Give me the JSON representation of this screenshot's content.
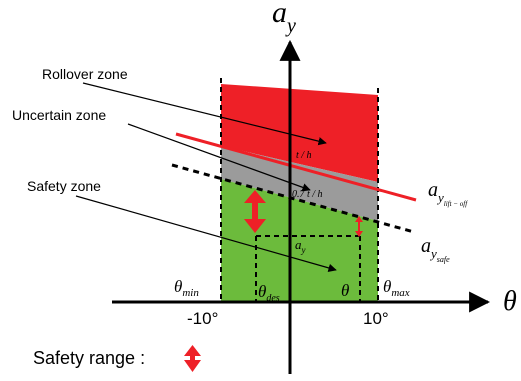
{
  "axes": {
    "y_label_main": "a",
    "y_label_sub": "y",
    "x_label": "θ"
  },
  "zones": {
    "rollover": "Rollover zone",
    "uncertain": "Uncertain zone",
    "safety": "Safety zone"
  },
  "line_labels": {
    "t_over_h": "t / h",
    "t_over_h_scaled": "0.7 t / h",
    "a_y": "a",
    "a_y_sub": "y"
  },
  "thresholds": {
    "lift_off_main": "a",
    "lift_off_sub": "y",
    "lift_off_subsub": "lift − off",
    "safe_main": "a",
    "safe_sub": "y",
    "safe_subsub": "safe"
  },
  "angles": {
    "theta_min_main": "θ",
    "theta_min_sub": "min",
    "theta_des_main": "θ",
    "theta_des_sub": "des",
    "theta": "θ",
    "theta_max_main": "θ",
    "theta_max_sub": "max"
  },
  "ticks": {
    "neg": "-10°",
    "pos": "10°"
  },
  "legend": {
    "safety_range": "Safety range :"
  },
  "colors": {
    "rollover": "#ee2027",
    "uncertain": "#9b9b9b",
    "safety": "#6cbb3c",
    "lift_off_line": "#ee2027",
    "range_arrow": "#ee2027"
  }
}
